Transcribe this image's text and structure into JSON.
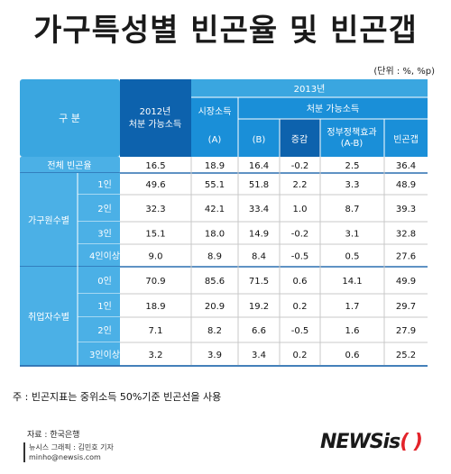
{
  "title": "가구특성별 빈곤율 및 빈곤갭",
  "unit": "(단위 : %, %p)",
  "header": {
    "category": "구 분",
    "y2012": "2012년",
    "y2012_sub": "처분 가능소득",
    "y2013": "2013년",
    "market": "시장소득",
    "market_a": "(A)",
    "disp": "처분 가능소득",
    "disp_b": "(B)",
    "change": "증감",
    "gov": "정부정책효과",
    "gov_sub": "(A-B)",
    "gap": "빈곤갭"
  },
  "chart_data": {
    "type": "table",
    "columns": [
      "2012년 처분 가능소득",
      "2013년 시장소득 (A)",
      "2013년 처분 가능소득 (B)",
      "2013년 처분 가능소득 증감",
      "정부정책효과 (A-B)",
      "빈곤갭"
    ],
    "groups": [
      {
        "name": "전체 빈곤율",
        "rows": [
          {
            "label": "",
            "values": [
              "16.5",
              "18.9",
              "16.4",
              "-0.2",
              "2.5",
              "36.4"
            ]
          }
        ]
      },
      {
        "name": "가구원수별",
        "rows": [
          {
            "label": "1인",
            "values": [
              "49.6",
              "55.1",
              "51.8",
              "2.2",
              "3.3",
              "48.9"
            ]
          },
          {
            "label": "2인",
            "values": [
              "32.3",
              "42.1",
              "33.4",
              "1.0",
              "8.7",
              "39.3"
            ]
          },
          {
            "label": "3인",
            "values": [
              "15.1",
              "18.0",
              "14.9",
              "-0.2",
              "3.1",
              "32.8"
            ]
          },
          {
            "label": "4인이상",
            "values": [
              "9.0",
              "8.9",
              "8.4",
              "-0.5",
              "0.5",
              "27.6"
            ]
          }
        ]
      },
      {
        "name": "취업자수별",
        "rows": [
          {
            "label": "0인",
            "values": [
              "70.9",
              "85.6",
              "71.5",
              "0.6",
              "14.1",
              "49.9"
            ]
          },
          {
            "label": "1인",
            "values": [
              "18.9",
              "20.9",
              "19.2",
              "0.2",
              "1.7",
              "29.7"
            ]
          },
          {
            "label": "2인",
            "values": [
              "7.1",
              "8.2",
              "6.6",
              "-0.5",
              "1.6",
              "27.9"
            ]
          },
          {
            "label": "3인이상",
            "values": [
              "3.2",
              "3.9",
              "3.4",
              "0.2",
              "0.6",
              "25.2"
            ]
          }
        ]
      }
    ]
  },
  "note": "주 : 빈곤지표는 중위소득 50%기준 빈곤선을 사용",
  "source": "자료 : 한국은행",
  "credit_line1": "뉴시스 그래픽 : 김민호 기자",
  "credit_line2": "minho@newsis.com",
  "logo_main": "NEWSis",
  "logo_paren": "( )",
  "colors": {
    "header_light": "#3aa6e0",
    "header_mid": "#1a8fd8",
    "header_dark": "#0d62ad",
    "row_label": "#4bb0e6",
    "grid": "#c8c8c8"
  }
}
